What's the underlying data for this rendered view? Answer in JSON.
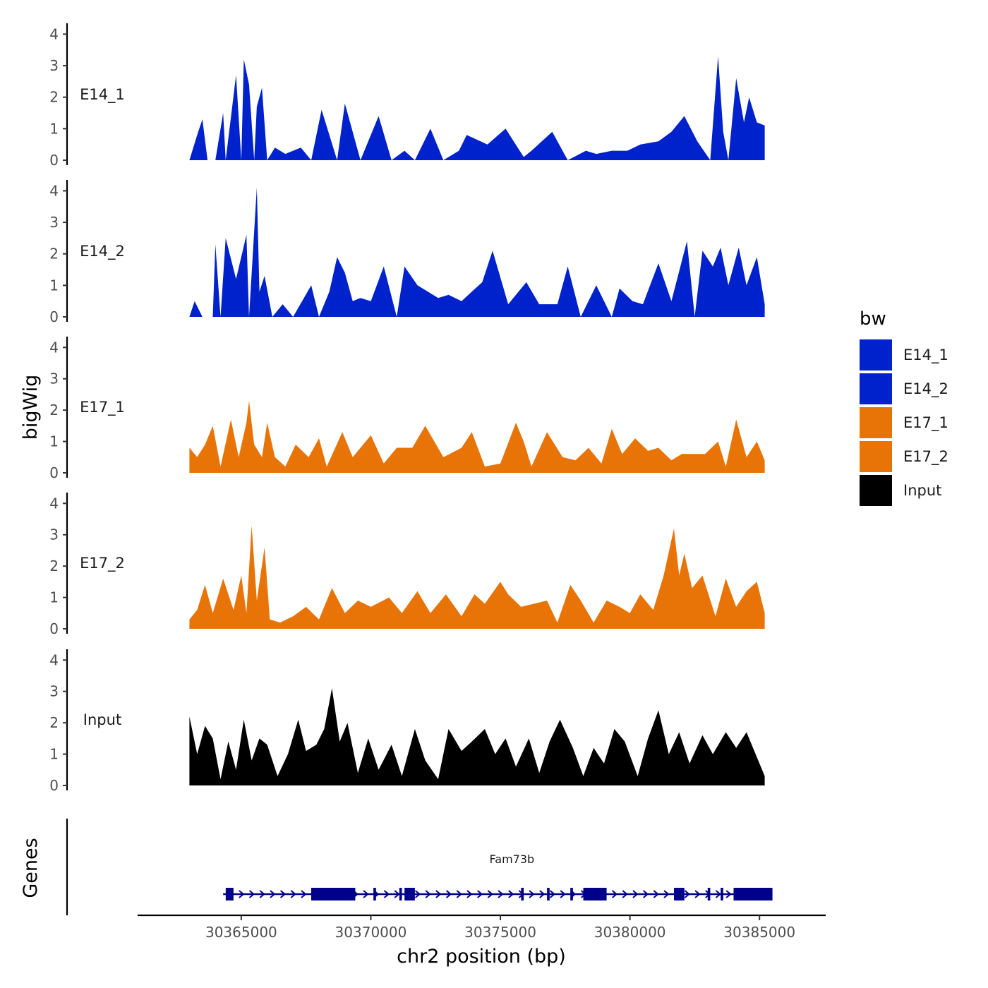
{
  "chart_data": {
    "type": "area",
    "y_axis_title": "bigWig",
    "x_axis_title": "chr2 position (bp)",
    "x_range": [
      30361000,
      30387500
    ],
    "x_ticks": [
      30365000,
      30370000,
      30375000,
      30380000,
      30385000
    ],
    "x_tick_labels": [
      "30365000",
      "30370000",
      "30375000",
      "30380000",
      "30385000"
    ],
    "y_range": [
      0,
      4.3
    ],
    "y_ticks": [
      0,
      1,
      2,
      3,
      4
    ],
    "y_tick_labels": [
      "0",
      "1",
      "2",
      "3",
      "4"
    ],
    "tracks": [
      {
        "name": "E14_1",
        "color": "#0022CC",
        "x": [
          30363000,
          30363300,
          30363500,
          30363700,
          30363800,
          30364000,
          30364300,
          30364400,
          30364800,
          30365000,
          30365100,
          30365300,
          30365500,
          30365600,
          30365800,
          30366000,
          30366300,
          30366700,
          30367300,
          30367700,
          30368100,
          30368700,
          30369000,
          30369600,
          30370300,
          30370800,
          30371300,
          30371700,
          30372300,
          30372800,
          30373400,
          30373700,
          30374500,
          30375200,
          30375900,
          30376200,
          30377000,
          30377600,
          30378300,
          30378700,
          30379300,
          30379900,
          30380400,
          30381100,
          30381600,
          30382100,
          30382600,
          30383100,
          30383400,
          30383600,
          30383800,
          30384100,
          30384400,
          30384600,
          30384900,
          30385200
        ],
        "values": [
          0,
          0.8,
          1.3,
          0,
          0,
          0,
          1.5,
          0,
          2.7,
          0,
          3.2,
          2.4,
          0,
          1.7,
          2.3,
          0,
          0.4,
          0.2,
          0.4,
          0,
          1.6,
          0,
          1.8,
          0,
          1.4,
          0,
          0.3,
          0,
          1.0,
          0,
          0.3,
          0.8,
          0.5,
          1.0,
          0.1,
          0.3,
          0.9,
          0,
          0.3,
          0.2,
          0.3,
          0.3,
          0.5,
          0.6,
          0.9,
          1.4,
          0.6,
          0,
          3.3,
          0.9,
          0,
          2.6,
          1.2,
          2.0,
          1.2,
          1.1
        ]
      },
      {
        "name": "E14_2",
        "color": "#0022CC",
        "x": [
          30363000,
          30363200,
          30363500,
          30363900,
          30364000,
          30364200,
          30364400,
          30364800,
          30365200,
          30365300,
          30365600,
          30365700,
          30365900,
          30366200,
          30366600,
          30367000,
          30367700,
          30368000,
          30368400,
          30368700,
          30369000,
          30369300,
          30369600,
          30370000,
          30370500,
          30371000,
          30371300,
          30371800,
          30372200,
          30372600,
          30373000,
          30373500,
          30373900,
          30374300,
          30374700,
          30375300,
          30376000,
          30376500,
          30377200,
          30377600,
          30378100,
          30378700,
          30379300,
          30379600,
          30380100,
          30380500,
          30381100,
          30381600,
          30382200,
          30382500,
          30382800,
          30383200,
          30383500,
          30383800,
          30384200,
          30384500,
          30384900,
          30385200
        ],
        "values": [
          0,
          0.5,
          0,
          0,
          2.3,
          0,
          2.5,
          1.2,
          2.6,
          0,
          4.1,
          0.8,
          1.3,
          0,
          0.4,
          0,
          1.0,
          0,
          0.8,
          1.9,
          1.4,
          0.5,
          0.6,
          0.5,
          1.6,
          0,
          1.6,
          1.0,
          0.8,
          0.6,
          0.7,
          0.5,
          0.8,
          1.1,
          2.1,
          0.4,
          1.1,
          0.4,
          0.4,
          1.6,
          0,
          1.0,
          0,
          0.9,
          0.5,
          0.4,
          1.7,
          0.5,
          2.4,
          0,
          2.1,
          1.6,
          2.2,
          1.0,
          2.2,
          1.0,
          1.9,
          0.4
        ]
      },
      {
        "name": "E17_1",
        "color": "#E87408",
        "x": [
          30363000,
          30363300,
          30363600,
          30363900,
          30364200,
          30364600,
          30364900,
          30365200,
          30365300,
          30365500,
          30365800,
          30366000,
          30366300,
          30366700,
          30367100,
          30367600,
          30368000,
          30368300,
          30368900,
          30369300,
          30370000,
          30370500,
          30371000,
          30371600,
          30372100,
          30372800,
          30373500,
          30373900,
          30374400,
          30375000,
          30375600,
          30375900,
          30376200,
          30376800,
          30377400,
          30377900,
          30378400,
          30378900,
          30379300,
          30379700,
          30380200,
          30380700,
          30381100,
          30381600,
          30382000,
          30382500,
          30382900,
          30383400,
          30383700,
          30384100,
          30384500,
          30384900,
          30385200
        ],
        "values": [
          0.8,
          0.5,
          0.9,
          1.5,
          0.2,
          1.7,
          0.5,
          1.6,
          2.3,
          0.9,
          0.5,
          1.6,
          0.5,
          0.2,
          0.9,
          0.5,
          1.1,
          0.2,
          1.3,
          0.5,
          1.2,
          0.3,
          0.8,
          0.8,
          1.5,
          0.5,
          0.8,
          1.3,
          0.2,
          0.3,
          1.6,
          1.0,
          0.2,
          1.3,
          0.5,
          0.4,
          0.8,
          0.3,
          1.4,
          0.6,
          1.1,
          0.7,
          0.8,
          0.4,
          0.6,
          0.6,
          0.6,
          1.0,
          0.2,
          1.7,
          0.5,
          1.0,
          0.4
        ]
      },
      {
        "name": "E17_2",
        "color": "#E87408",
        "x": [
          30363000,
          30363300,
          30363600,
          30363900,
          30364300,
          30364700,
          30365000,
          30365200,
          30365400,
          30365600,
          30365900,
          30366100,
          30366500,
          30367000,
          30367500,
          30368000,
          30368500,
          30369000,
          30369500,
          30370000,
          30370700,
          30371200,
          30371800,
          30372300,
          30372900,
          30373500,
          30374000,
          30374400,
          30375000,
          30375300,
          30375800,
          30376300,
          30376800,
          30377200,
          30377700,
          30378100,
          30378600,
          30379100,
          30379600,
          30380000,
          30380400,
          30380900,
          30381300,
          30381700,
          30381900,
          30382100,
          30382400,
          30382800,
          30383300,
          30383700,
          30384100,
          30384500,
          30384900,
          30385200
        ],
        "values": [
          0.3,
          0.6,
          1.4,
          0.5,
          1.6,
          0.6,
          1.7,
          0.5,
          3.3,
          0.9,
          2.6,
          0.3,
          0.2,
          0.4,
          0.7,
          0.3,
          1.3,
          0.5,
          0.9,
          0.7,
          1.0,
          0.5,
          1.2,
          0.5,
          1.1,
          0.4,
          1.1,
          0.8,
          1.5,
          1.1,
          0.7,
          0.8,
          0.9,
          0.2,
          1.4,
          0.9,
          0.2,
          0.9,
          0.7,
          0.5,
          1.1,
          0.6,
          1.7,
          3.2,
          1.7,
          2.4,
          1.3,
          1.7,
          0.4,
          1.6,
          0.7,
          1.2,
          1.5,
          0.5
        ]
      },
      {
        "name": "Input",
        "color": "#000000",
        "x": [
          30363000,
          30363300,
          30363600,
          30363900,
          30364200,
          30364500,
          30364800,
          30365100,
          30365400,
          30365700,
          30366000,
          30366400,
          30366800,
          30367200,
          30367500,
          30367900,
          30368200,
          30368500,
          30368800,
          30369100,
          30369500,
          30369900,
          30370300,
          30370800,
          30371200,
          30371700,
          30372100,
          30372600,
          30373000,
          30373500,
          30373900,
          30374400,
          30374800,
          30375200,
          30375600,
          30376100,
          30376500,
          30376900,
          30377300,
          30377800,
          30378200,
          30378600,
          30379000,
          30379400,
          30379800,
          30380300,
          30380700,
          30381100,
          30381500,
          30381900,
          30382300,
          30382800,
          30383200,
          30383700,
          30384100,
          30384500,
          30384900,
          30385200
        ],
        "values": [
          2.2,
          1.0,
          1.9,
          1.5,
          0.2,
          1.4,
          0.5,
          2.1,
          0.8,
          1.5,
          1.3,
          0.3,
          1.0,
          2.1,
          1.1,
          1.3,
          1.8,
          3.1,
          1.4,
          2.0,
          0.4,
          1.5,
          0.5,
          1.3,
          0.3,
          1.8,
          0.8,
          0.2,
          1.8,
          1.1,
          1.4,
          1.8,
          1.0,
          1.5,
          0.6,
          1.5,
          0.4,
          1.4,
          2.1,
          1.2,
          0.3,
          1.2,
          0.7,
          1.8,
          1.4,
          0.3,
          1.5,
          2.4,
          1.0,
          1.7,
          0.7,
          1.6,
          1.0,
          1.7,
          1.2,
          1.7,
          0.9,
          0.3
        ]
      }
    ],
    "gene": {
      "name": "Fam73b",
      "color": "#00008B",
      "start": 30364300,
      "end": 30385500,
      "strand": "+",
      "exons": [
        [
          30364400,
          30364700
        ],
        [
          30367700,
          30369400
        ],
        [
          30370100,
          30370200
        ],
        [
          30371100,
          30371200
        ],
        [
          30371300,
          30371700
        ],
        [
          30375800,
          30375900
        ],
        [
          30376800,
          30376900
        ],
        [
          30377700,
          30377800
        ],
        [
          30378200,
          30379100
        ],
        [
          30381700,
          30382100
        ],
        [
          30383000,
          30383100
        ],
        [
          30383500,
          30383600
        ],
        [
          30384000,
          30385500
        ]
      ]
    },
    "legend": {
      "title": "bw",
      "position": "right",
      "entries": [
        {
          "label": "E14_1",
          "color": "#0022CC"
        },
        {
          "label": "E14_2",
          "color": "#0022CC"
        },
        {
          "label": "E17_1",
          "color": "#E87408"
        },
        {
          "label": "E17_2",
          "color": "#E87408"
        },
        {
          "label": "Input",
          "color": "#000000"
        }
      ]
    },
    "genes_panel_label": "Genes"
  }
}
